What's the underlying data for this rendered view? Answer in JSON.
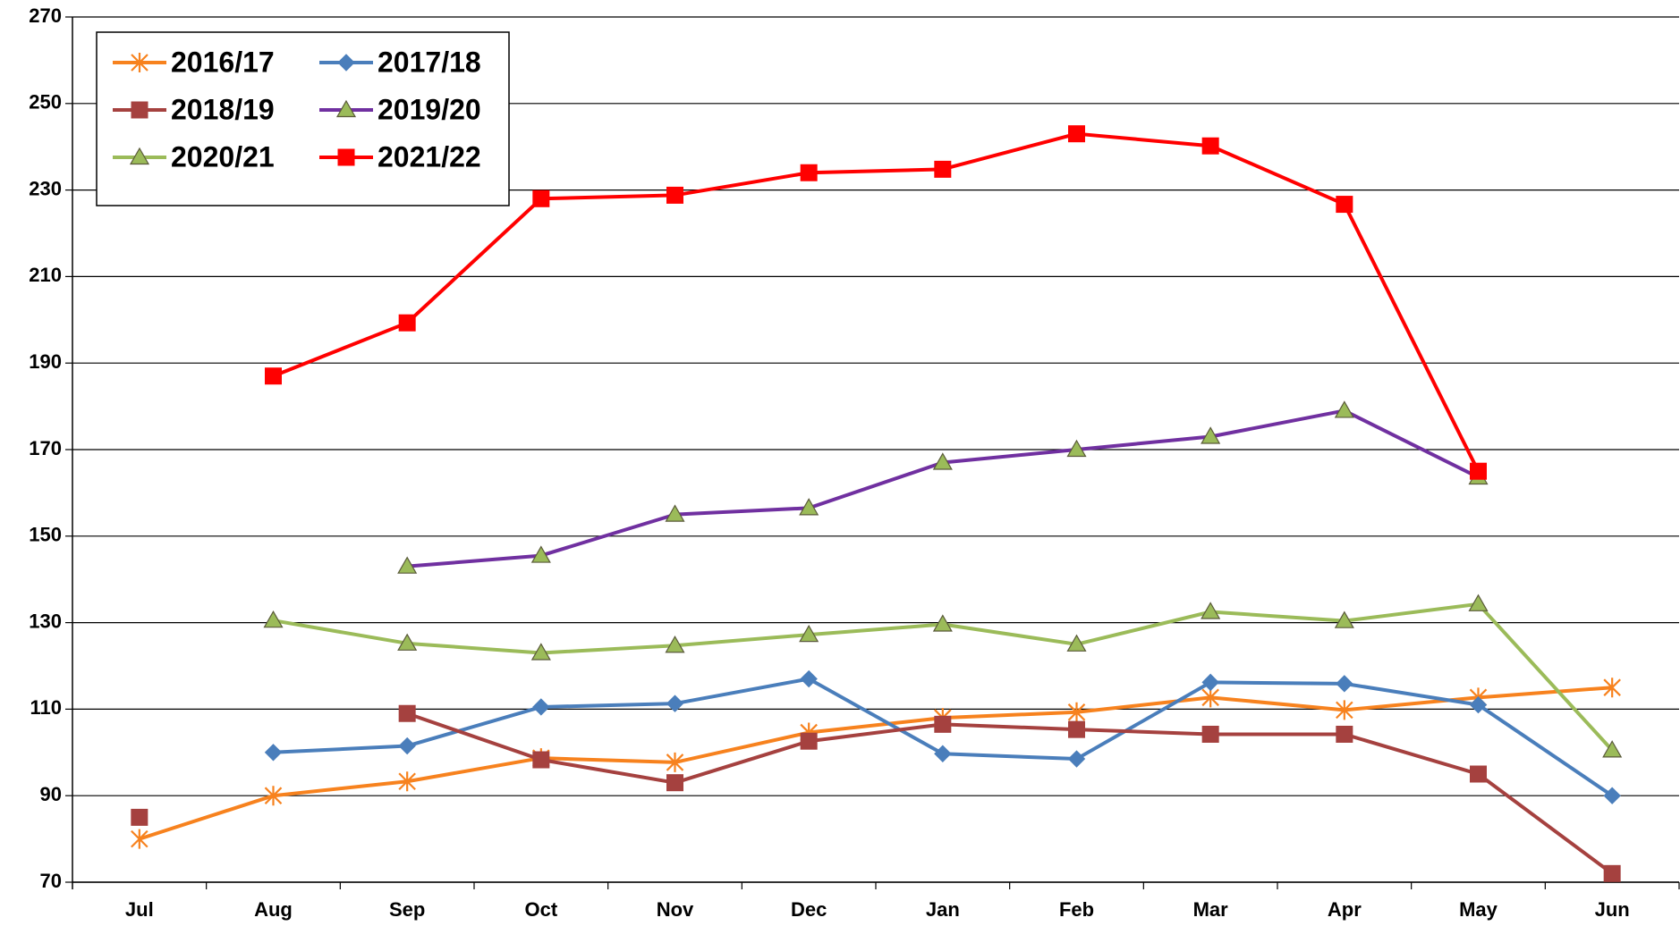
{
  "chart_data": {
    "type": "line",
    "categories": [
      "Jul",
      "Aug",
      "Sep",
      "Oct",
      "Nov",
      "Dec",
      "Jan",
      "Feb",
      "Mar",
      "Apr",
      "May",
      "Jun"
    ],
    "ylim": [
      70,
      270
    ],
    "yticks": [
      70,
      90,
      110,
      130,
      150,
      170,
      190,
      210,
      230,
      250,
      270
    ],
    "grid": true,
    "legend": "upper left",
    "series": [
      {
        "name": "2016/17",
        "color": "#f7821e",
        "marker": "star",
        "marker_fill": "#f7821e",
        "values": [
          80,
          90,
          93.3,
          98.7,
          97.7,
          104.6,
          108,
          109.3,
          112.7,
          109.8,
          112.7,
          115
        ]
      },
      {
        "name": "2017/18",
        "color": "#4a7ebb",
        "marker": "diamond",
        "marker_fill": "#4a7ebb",
        "values": [
          null,
          100,
          101.5,
          110.5,
          111.3,
          117,
          99.7,
          98.5,
          116.2,
          115.9,
          111,
          90
        ]
      },
      {
        "name": "2018/19",
        "color": "#a5413f",
        "marker": "square",
        "marker_fill": "#a5413f",
        "values": [
          85,
          null,
          109,
          98.3,
          93,
          102.6,
          106.5,
          105.3,
          104.2,
          104.2,
          95,
          72
        ]
      },
      {
        "name": "2019/20",
        "color": "#7030a0",
        "marker": "triangle",
        "marker_fill": "#9bbb59",
        "values": [
          null,
          null,
          143,
          145.5,
          155,
          156.5,
          167,
          170,
          173,
          179,
          163.6,
          null
        ]
      },
      {
        "name": "2020/21",
        "color": "#9bbb59",
        "marker": "triangle",
        "marker_fill": "#9bbb59",
        "values": [
          null,
          130.5,
          125.2,
          123,
          124.7,
          127.2,
          129.6,
          125,
          132.5,
          130.4,
          134.3,
          100.5
        ]
      },
      {
        "name": "2021/22",
        "color": "#ff0000",
        "marker": "square",
        "marker_fill": "#ff0000",
        "values": [
          null,
          187,
          199.3,
          228,
          228.8,
          234,
          234.8,
          243,
          240.2,
          226.7,
          165,
          null
        ]
      }
    ]
  }
}
